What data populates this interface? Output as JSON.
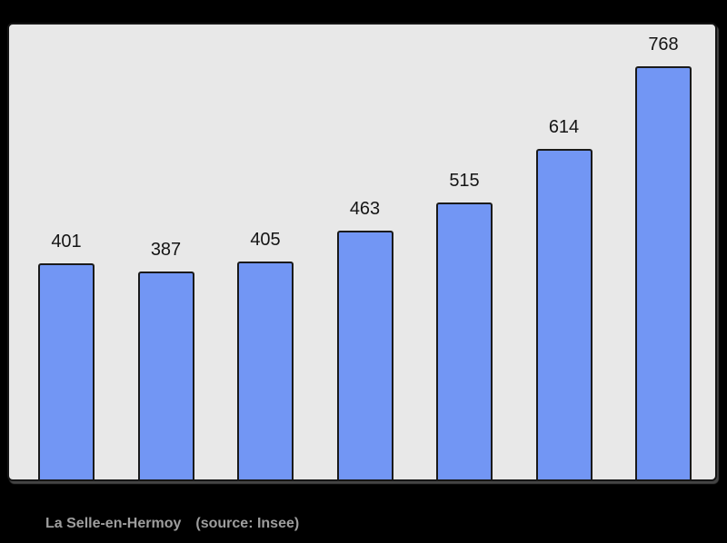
{
  "page": {
    "background": "#000000"
  },
  "chart_data": {
    "type": "bar",
    "values": [
      401,
      387,
      405,
      463,
      515,
      614,
      768
    ],
    "data_labels": [
      "401",
      "387",
      "405",
      "463",
      "515",
      "614",
      "768"
    ],
    "categories": [
      "",
      "",
      "",
      "",
      "",
      "",
      ""
    ],
    "title": "",
    "xlabel": "",
    "ylabel": "",
    "ylim": [
      0,
      850
    ],
    "grid": false,
    "legend": false,
    "bar_color": "#7296f4",
    "bar_border_color": "#1a1a1a",
    "panel_background": "#e8e8e8",
    "panel_border_color": "#151515",
    "label_color": "#151515"
  },
  "footer": {
    "title": "La Selle-en-Hermoy",
    "source": "(source: Insee)",
    "text_color": "#9e9e9e"
  }
}
